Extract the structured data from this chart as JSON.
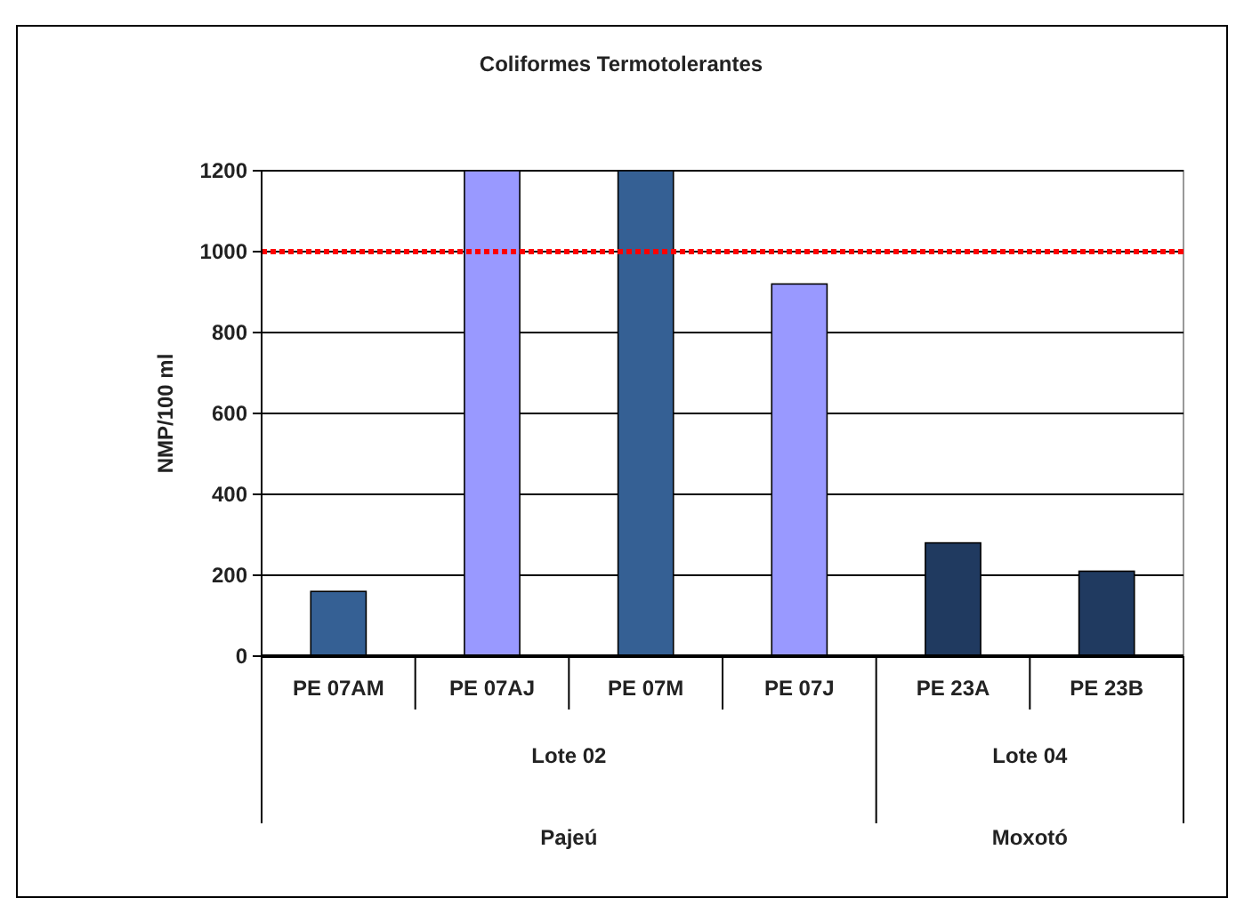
{
  "chart_data": {
    "type": "bar",
    "title": "Coliformes Termotolerantes",
    "ylabel": "NMP/100 ml",
    "categories": [
      "PE 07AM",
      "PE 07AJ",
      "PE 07M",
      "PE 07J",
      "PE 23A",
      "PE 23B"
    ],
    "values": [
      160,
      1200,
      1200,
      920,
      280,
      210
    ],
    "colors": [
      "#356094",
      "#9999ff",
      "#356094",
      "#9999ff",
      "#203a60",
      "#203a60"
    ],
    "ylim": [
      0,
      1200
    ],
    "yticks": [
      0,
      200,
      400,
      600,
      800,
      1000,
      1200
    ],
    "grid": "y",
    "ref_lines": [
      {
        "axis": "y",
        "value": 1000,
        "color": "#ff0000",
        "line_style": "dotted"
      }
    ],
    "annotations": [
      "Lote 02",
      "Lote 04",
      "Pajeú",
      "Moxotó"
    ]
  }
}
